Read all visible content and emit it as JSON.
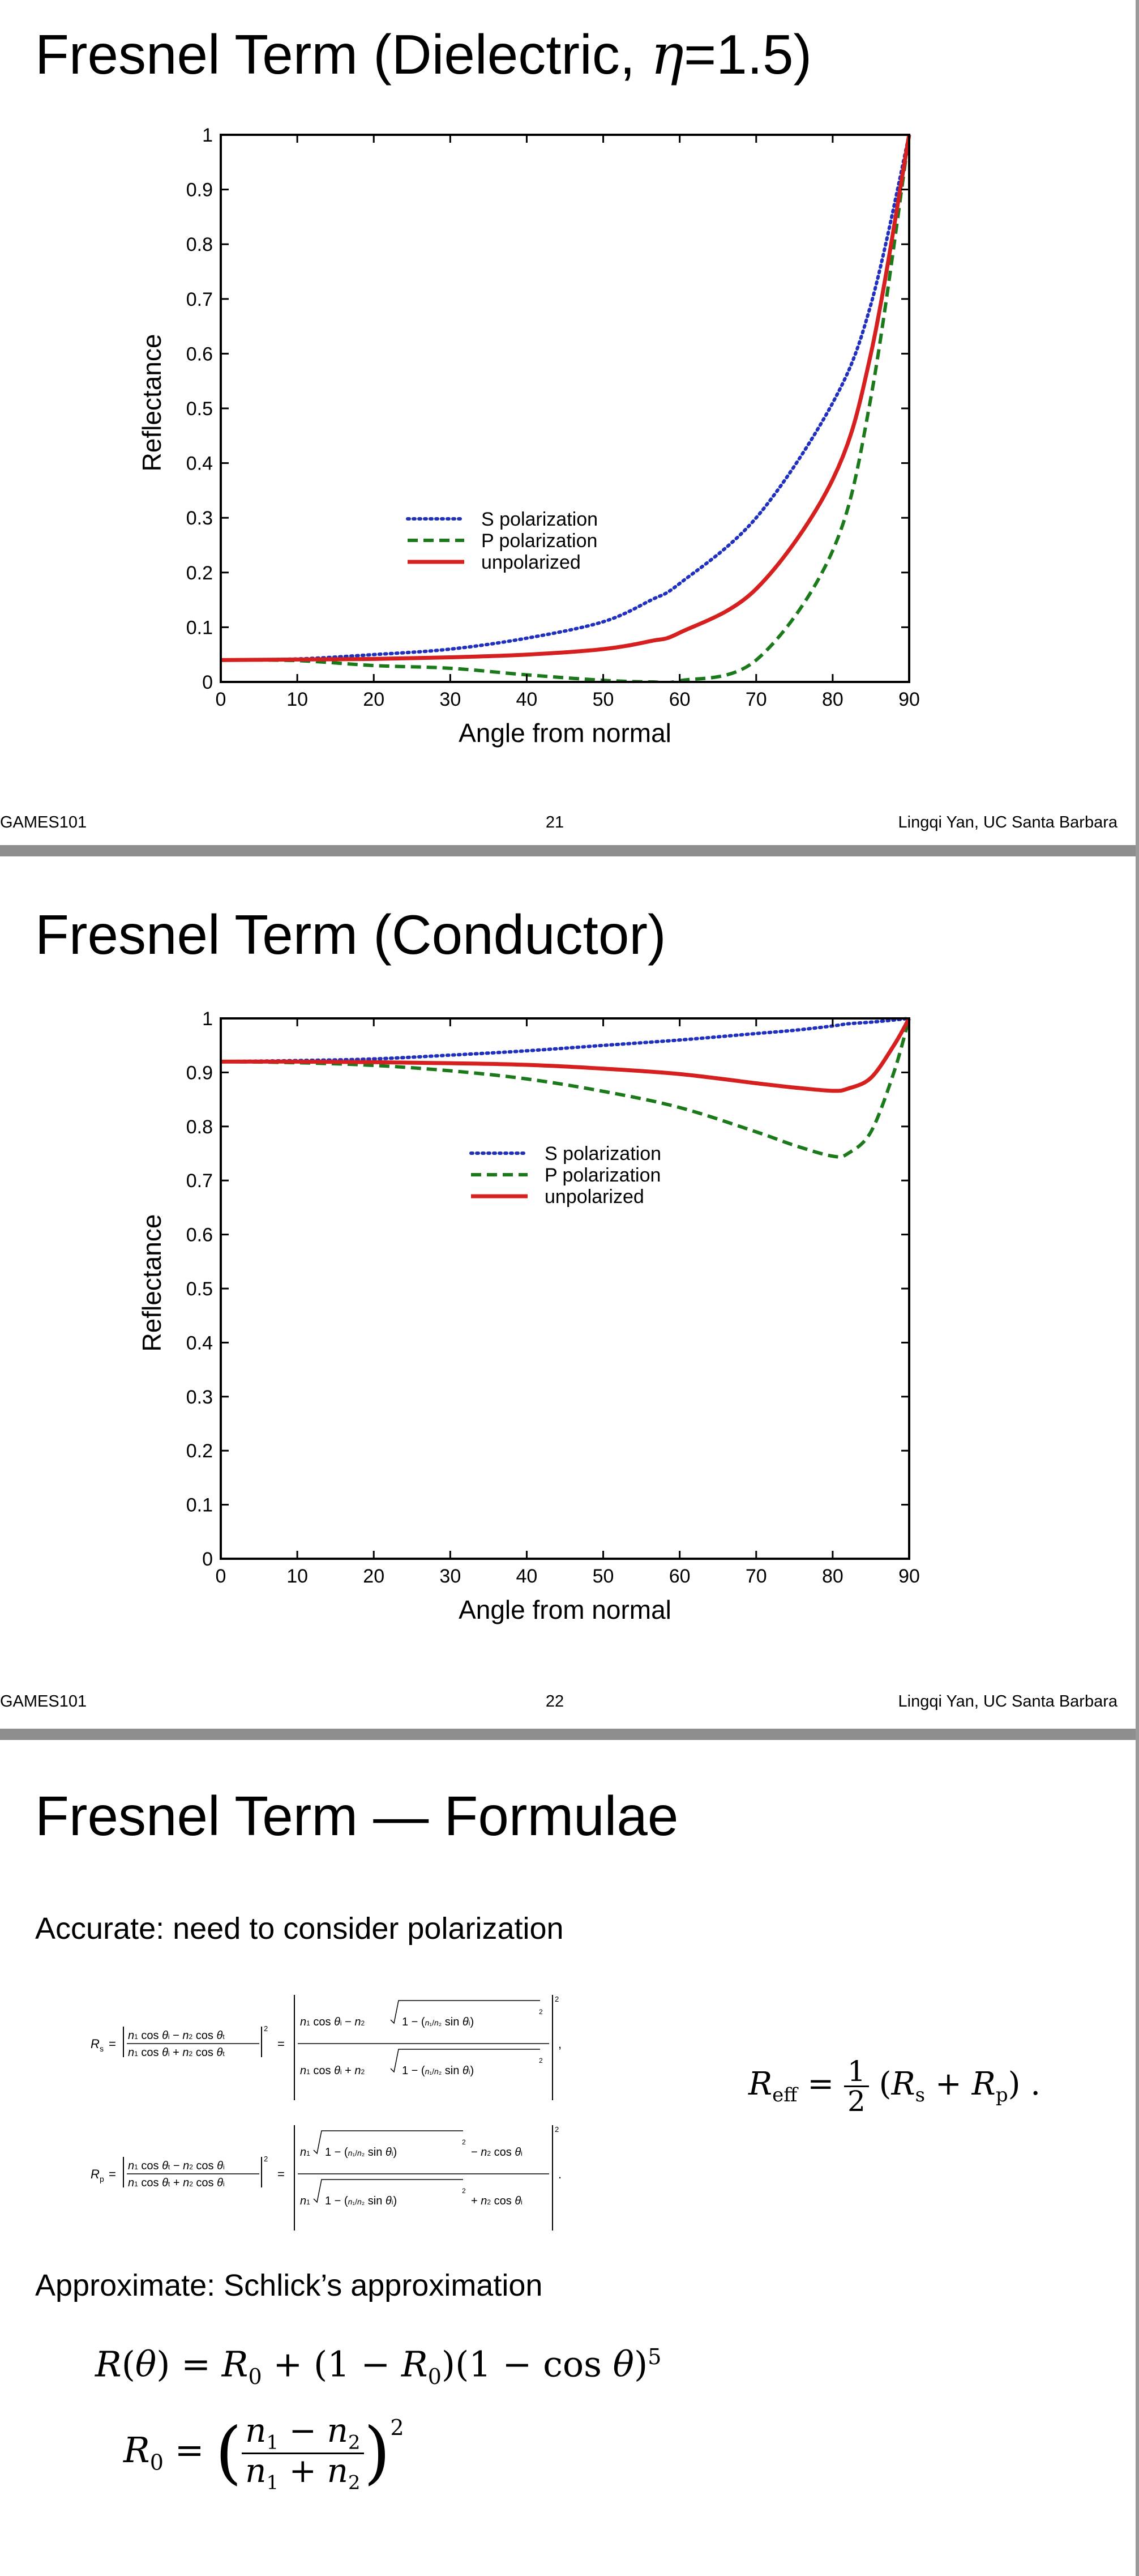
{
  "slides": [
    {
      "title_prefix": "Fresnel Term (Dielectric, ",
      "title_symbol": "η",
      "title_suffix": "=1.5)",
      "footer": {
        "left": "GAMES101",
        "page": "21",
        "right": "Lingqi Yan, UC Santa Barbara"
      }
    },
    {
      "title": "Fresnel Term (Conductor)",
      "footer": {
        "left": "GAMES101",
        "page": "22",
        "right": "Lingqi Yan, UC Santa Barbara"
      }
    },
    {
      "title": "Fresnel Term — Formulae",
      "accurate_label": "Accurate: need to consider polarization",
      "approx_label": "Approximate: Schlick’s approximation"
    }
  ],
  "chart_data": [
    {
      "type": "line",
      "xlabel": "Angle from normal",
      "ylabel": "Reflectance",
      "xlim": [
        0,
        90
      ],
      "ylim": [
        0,
        1
      ],
      "xticks": [
        "0",
        "10",
        "20",
        "30",
        "40",
        "50",
        "60",
        "70",
        "80",
        "90"
      ],
      "yticks": [
        "0",
        "0.1",
        "0.2",
        "0.3",
        "0.4",
        "0.5",
        "0.6",
        "0.7",
        "0.8",
        "0.9",
        "1"
      ],
      "grid": false,
      "legend_position": "center",
      "x": [
        0,
        10,
        20,
        30,
        40,
        50,
        56.3,
        60,
        70,
        80,
        85,
        90
      ],
      "series": [
        {
          "name": "S polarization",
          "style": "dotted",
          "color": "#1f2fbf",
          "values": [
            0.04,
            0.042,
            0.05,
            0.06,
            0.08,
            0.11,
            0.15,
            0.18,
            0.3,
            0.51,
            0.69,
            1.0
          ]
        },
        {
          "name": "P polarization",
          "style": "dashed",
          "color": "#1a7a1a",
          "values": [
            0.04,
            0.039,
            0.03,
            0.025,
            0.013,
            0.003,
            0.0,
            0.002,
            0.04,
            0.24,
            0.52,
            1.0
          ]
        },
        {
          "name": "unpolarized",
          "style": "solid",
          "color": "#d62020",
          "values": [
            0.04,
            0.041,
            0.042,
            0.045,
            0.05,
            0.06,
            0.075,
            0.09,
            0.17,
            0.37,
            0.6,
            1.0
          ]
        }
      ]
    },
    {
      "type": "line",
      "xlabel": "Angle from normal",
      "ylabel": "Reflectance",
      "xlim": [
        0,
        90
      ],
      "ylim": [
        0,
        1
      ],
      "xticks": [
        "0",
        "10",
        "20",
        "30",
        "40",
        "50",
        "60",
        "70",
        "80",
        "90"
      ],
      "yticks": [
        "0",
        "0.1",
        "0.2",
        "0.3",
        "0.4",
        "0.5",
        "0.6",
        "0.7",
        "0.8",
        "0.9",
        "1"
      ],
      "grid": false,
      "legend_position": "upper center",
      "x": [
        0,
        10,
        20,
        30,
        40,
        50,
        60,
        70,
        75,
        80,
        82,
        85,
        88,
        90
      ],
      "series": [
        {
          "name": "S polarization",
          "style": "dotted",
          "color": "#1f2fbf",
          "values": [
            0.92,
            0.922,
            0.925,
            0.932,
            0.94,
            0.95,
            0.96,
            0.972,
            0.978,
            0.986,
            0.99,
            0.993,
            0.997,
            1.0
          ]
        },
        {
          "name": "P polarization",
          "style": "dashed",
          "color": "#1a7a1a",
          "values": [
            0.92,
            0.918,
            0.913,
            0.903,
            0.888,
            0.865,
            0.835,
            0.79,
            0.765,
            0.745,
            0.75,
            0.79,
            0.9,
            1.0
          ]
        },
        {
          "name": "unpolarized",
          "style": "solid",
          "color": "#d62020",
          "values": [
            0.92,
            0.92,
            0.919,
            0.917,
            0.914,
            0.907,
            0.897,
            0.88,
            0.872,
            0.866,
            0.87,
            0.89,
            0.95,
            1.0
          ]
        }
      ]
    }
  ]
}
